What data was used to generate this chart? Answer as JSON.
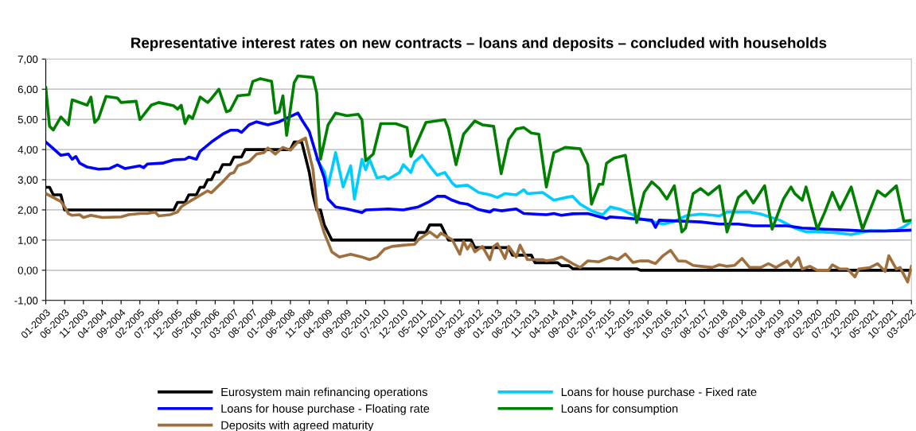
{
  "chart_data": {
    "type": "line",
    "title": "Representative interest rates on new contracts – loans and deposits – concluded with households",
    "xlim": [
      "2003-01",
      "2022-03"
    ],
    "xticks": [
      {
        "value": "2003-01",
        "label": "01-2003"
      },
      {
        "value": "2003-06",
        "label": "06-2003"
      },
      {
        "value": "2003-11",
        "label": "11-2003"
      },
      {
        "value": "2004-04",
        "label": "04-2004"
      },
      {
        "value": "2004-09",
        "label": "09-2004"
      },
      {
        "value": "2005-02",
        "label": "02-2005"
      },
      {
        "value": "2005-07",
        "label": "07-2005"
      },
      {
        "value": "2005-12",
        "label": "12-2005"
      },
      {
        "value": "2006-05",
        "label": "05-2006"
      },
      {
        "value": "2006-10",
        "label": "10-2006"
      },
      {
        "value": "2007-03",
        "label": "03-2007"
      },
      {
        "value": "2007-08",
        "label": "08-2007"
      },
      {
        "value": "2008-01",
        "label": "01-2008"
      },
      {
        "value": "2008-06",
        "label": "06-2008"
      },
      {
        "value": "2008-11",
        "label": "11-2008"
      },
      {
        "value": "2009-04",
        "label": "04-2009"
      },
      {
        "value": "2009-09",
        "label": "09-2009"
      },
      {
        "value": "2010-02",
        "label": "02-2010"
      },
      {
        "value": "2010-07",
        "label": "07-2010"
      },
      {
        "value": "2010-12",
        "label": "12-2010"
      },
      {
        "value": "2011-05",
        "label": "05-2011"
      },
      {
        "value": "2011-10",
        "label": "10-2011"
      },
      {
        "value": "2012-03",
        "label": "03-2012"
      },
      {
        "value": "2012-08",
        "label": "08-2012"
      },
      {
        "value": "2013-01",
        "label": "01-2013"
      },
      {
        "value": "2013-06",
        "label": "06-2013"
      },
      {
        "value": "2013-11",
        "label": "11-2013"
      },
      {
        "value": "2014-04",
        "label": "04-2014"
      },
      {
        "value": "2014-09",
        "label": "09-2014"
      },
      {
        "value": "2015-02",
        "label": "02-2015"
      },
      {
        "value": "2015-07",
        "label": "07-2015"
      },
      {
        "value": "2015-12",
        "label": "12-2015"
      },
      {
        "value": "2016-05",
        "label": "05-2016"
      },
      {
        "value": "2016-10",
        "label": "10-2016"
      },
      {
        "value": "2017-03",
        "label": "03-2017"
      },
      {
        "value": "2017-08",
        "label": "08-2017"
      },
      {
        "value": "2018-01",
        "label": "01-2018"
      },
      {
        "value": "2018-06",
        "label": "06-2018"
      },
      {
        "value": "2018-11",
        "label": "11-2018"
      },
      {
        "value": "2019-04",
        "label": "04-2019"
      },
      {
        "value": "2019-09",
        "label": "09-2019"
      },
      {
        "value": "2020-02",
        "label": "02-2020"
      },
      {
        "value": "2020-07",
        "label": "07-2020"
      },
      {
        "value": "2020-12",
        "label": "12-2020"
      },
      {
        "value": "2021-05",
        "label": "05-2021"
      },
      {
        "value": "2021-10",
        "label": "10-2021"
      },
      {
        "value": "2022-03",
        "label": "03-2022"
      }
    ],
    "ylim": [
      -1,
      7
    ],
    "yticks": [
      {
        "value": -1,
        "label": "-1,00"
      },
      {
        "value": 0,
        "label": "0,00"
      },
      {
        "value": 1,
        "label": "1,00"
      },
      {
        "value": 2,
        "label": "2,00"
      },
      {
        "value": 3,
        "label": "3,00"
      },
      {
        "value": 4,
        "label": "4,00"
      },
      {
        "value": 5,
        "label": "5,00"
      },
      {
        "value": 6,
        "label": "6,00"
      },
      {
        "value": 7,
        "label": "7,00"
      }
    ],
    "grid": "y",
    "legend": "bottom",
    "marker": "none",
    "line_style": "solid",
    "series": [
      {
        "name": "Eurosystem main refinancing operations",
        "color": "#000000",
        "x": [
          "2003-01",
          "2003-02",
          "2003-03",
          "2003-05",
          "2003-06",
          "2005-11",
          "2005-12",
          "2006-02",
          "2006-03",
          "2006-05",
          "2006-06",
          "2006-07",
          "2006-08",
          "2006-09",
          "2006-10",
          "2006-11",
          "2006-12",
          "2007-02",
          "2007-03",
          "2007-05",
          "2007-06",
          "2008-06",
          "2008-07",
          "2008-09",
          "2008-10",
          "2008-11",
          "2008-12",
          "2009-01",
          "2009-02",
          "2009-03",
          "2009-04",
          "2009-05",
          "2011-03",
          "2011-04",
          "2011-06",
          "2011-07",
          "2011-10",
          "2011-11",
          "2011-12",
          "2012-06",
          "2012-07",
          "2013-04",
          "2013-05",
          "2013-10",
          "2013-11",
          "2014-05",
          "2014-06",
          "2014-08",
          "2014-09",
          "2016-02",
          "2016-03",
          "2022-03"
        ],
        "values": [
          2.75,
          2.75,
          2.5,
          2.5,
          2.0,
          2.0,
          2.25,
          2.25,
          2.5,
          2.5,
          2.75,
          2.75,
          3.0,
          3.0,
          3.25,
          3.25,
          3.5,
          3.5,
          3.75,
          3.75,
          4.0,
          4.0,
          4.25,
          4.25,
          3.75,
          3.25,
          2.5,
          2.0,
          2.0,
          1.5,
          1.25,
          1.0,
          1.0,
          1.25,
          1.25,
          1.5,
          1.5,
          1.25,
          1.0,
          1.0,
          0.75,
          0.75,
          0.5,
          0.5,
          0.25,
          0.25,
          0.15,
          0.15,
          0.05,
          0.05,
          0,
          0
        ]
      },
      {
        "name": "Loans for house purchase - Fixed rate",
        "color": "#00ccff",
        "x": [
          "2009-01",
          "2009-03",
          "2009-04",
          "2009-05",
          "2009-06",
          "2009-07",
          "2009-08",
          "2009-10",
          "2009-11",
          "2010-01",
          "2010-02",
          "2010-03",
          "2010-05",
          "2010-07",
          "2010-08",
          "2010-11",
          "2010-12",
          "2011-02",
          "2011-03",
          "2011-05",
          "2011-07",
          "2011-09",
          "2011-11",
          "2012-01",
          "2012-02",
          "2012-05",
          "2012-08",
          "2012-11",
          "2013-01",
          "2013-03",
          "2013-06",
          "2013-08",
          "2013-09",
          "2014-01",
          "2014-04",
          "2014-07",
          "2014-09",
          "2014-11",
          "2015-02",
          "2015-05",
          "2015-07",
          "2015-10",
          "2016-01",
          "2016-03",
          "2016-09",
          "2016-12",
          "2017-03",
          "2017-07",
          "2017-12",
          "2018-02",
          "2018-08",
          "2018-11",
          "2019-04",
          "2019-08",
          "2019-11",
          "2020-03",
          "2020-07",
          "2020-11",
          "2021-04",
          "2021-08",
          "2021-11",
          "2022-01",
          "2022-03"
        ],
        "values": [
          3.68,
          3.28,
          2.8,
          3.33,
          3.9,
          3.33,
          2.76,
          3.46,
          2.36,
          3.68,
          3.33,
          3.68,
          3.06,
          3.11,
          3.02,
          3.24,
          3.5,
          3.24,
          3.59,
          3.81,
          3.46,
          3.15,
          3.24,
          2.89,
          2.78,
          2.82,
          2.58,
          2.5,
          2.41,
          2.54,
          2.5,
          2.67,
          2.54,
          2.58,
          2.32,
          2.41,
          2.45,
          2.19,
          1.97,
          1.84,
          2.1,
          2.01,
          1.84,
          1.71,
          1.53,
          1.62,
          1.8,
          1.86,
          1.8,
          1.93,
          1.93,
          1.86,
          1.66,
          1.4,
          1.27,
          1.27,
          1.24,
          1.18,
          1.31,
          1.3,
          1.33,
          1.44,
          1.62
        ]
      },
      {
        "name": "Loans for house purchase - Floating rate",
        "color": "#0000ff",
        "x": [
          "2003-01",
          "2003-03",
          "2003-05",
          "2003-07",
          "2003-08",
          "2003-09",
          "2003-10",
          "2003-12",
          "2004-03",
          "2004-06",
          "2004-08",
          "2004-10",
          "2005-02",
          "2005-03",
          "2005-04",
          "2005-08",
          "2005-11",
          "2006-02",
          "2006-03",
          "2006-05",
          "2006-06",
          "2006-09",
          "2006-12",
          "2007-02",
          "2007-04",
          "2007-05",
          "2007-07",
          "2007-09",
          "2007-12",
          "2008-03",
          "2008-05",
          "2008-08",
          "2008-09",
          "2008-11",
          "2009-01",
          "2009-03",
          "2009-04",
          "2009-06",
          "2009-09",
          "2010-01",
          "2010-02",
          "2010-08",
          "2010-12",
          "2011-04",
          "2011-07",
          "2011-09",
          "2011-11",
          "2012-01",
          "2012-03",
          "2012-05",
          "2012-08",
          "2012-11",
          "2012-12",
          "2013-02",
          "2013-06",
          "2013-08",
          "2014-02",
          "2014-04",
          "2014-06",
          "2014-09",
          "2015-01",
          "2015-06",
          "2015-07",
          "2016-01",
          "2016-06",
          "2016-07",
          "2016-08",
          "2017-07",
          "2017-12",
          "2018-05",
          "2018-09",
          "2019-06",
          "2019-10",
          "2020-04",
          "2020-10",
          "2021-03",
          "2021-08",
          "2021-11",
          "2022-03"
        ],
        "values": [
          4.25,
          4.03,
          3.81,
          3.85,
          3.68,
          3.77,
          3.55,
          3.42,
          3.35,
          3.37,
          3.49,
          3.37,
          3.46,
          3.4,
          3.52,
          3.55,
          3.66,
          3.68,
          3.75,
          3.68,
          3.94,
          4.25,
          4.51,
          4.64,
          4.64,
          4.57,
          4.82,
          4.92,
          4.82,
          4.92,
          5.04,
          5.21,
          4.99,
          4.6,
          3.77,
          3.06,
          2.36,
          2.1,
          2.03,
          1.91,
          2.0,
          2.03,
          2.0,
          2.1,
          2.28,
          2.45,
          2.45,
          2.32,
          2.23,
          2.19,
          2.01,
          1.93,
          2.01,
          1.97,
          2.03,
          1.88,
          1.84,
          1.88,
          1.82,
          1.87,
          1.88,
          1.71,
          1.77,
          1.71,
          1.66,
          1.42,
          1.66,
          1.6,
          1.53,
          1.53,
          1.47,
          1.47,
          1.4,
          1.36,
          1.33,
          1.3,
          1.3,
          1.31,
          1.33
        ]
      },
      {
        "name": "Loans for consumption",
        "color": "#008000",
        "x": [
          "2003-01",
          "2003-02",
          "2003-03",
          "2003-05",
          "2003-07",
          "2003-08",
          "2003-12",
          "2004-01",
          "2004-02",
          "2004-03",
          "2004-05",
          "2004-08",
          "2004-09",
          "2005-01",
          "2005-02",
          "2005-05",
          "2005-07",
          "2005-11",
          "2005-12",
          "2006-01",
          "2006-02",
          "2006-03",
          "2006-04",
          "2006-06",
          "2006-08",
          "2006-09",
          "2006-11",
          "2007-01",
          "2007-02",
          "2007-04",
          "2007-07",
          "2007-08",
          "2007-10",
          "2008-01",
          "2008-02",
          "2008-03",
          "2008-04",
          "2008-05",
          "2008-07",
          "2008-08",
          "2008-12",
          "2009-01",
          "2009-02",
          "2009-04",
          "2009-06",
          "2009-09",
          "2009-12",
          "2010-01",
          "2010-02",
          "2010-04",
          "2010-06",
          "2010-10",
          "2011-01",
          "2011-02",
          "2011-06",
          "2011-11",
          "2011-12",
          "2012-02",
          "2012-04",
          "2012-07",
          "2012-09",
          "2012-12",
          "2013-02",
          "2013-04",
          "2013-06",
          "2013-08",
          "2013-10",
          "2013-12",
          "2014-02",
          "2014-04",
          "2014-07",
          "2014-11",
          "2015-01",
          "2015-02",
          "2015-04",
          "2015-05",
          "2015-06",
          "2015-08",
          "2015-11",
          "2016-02",
          "2016-04",
          "2016-06",
          "2016-08",
          "2016-10",
          "2016-12",
          "2017-02",
          "2017-03",
          "2017-05",
          "2017-07",
          "2017-09",
          "2017-12",
          "2018-02",
          "2018-05",
          "2018-07",
          "2018-09",
          "2018-12",
          "2019-02",
          "2019-05",
          "2019-07",
          "2019-08",
          "2019-10",
          "2019-11",
          "2020-02",
          "2020-04",
          "2020-06",
          "2020-08",
          "2020-11",
          "2021-02",
          "2021-06",
          "2021-08",
          "2021-11",
          "2022-01",
          "2022-03"
        ],
        "values": [
          6.05,
          4.77,
          4.65,
          5.08,
          4.82,
          5.65,
          5.47,
          5.74,
          4.9,
          5.03,
          5.76,
          5.71,
          5.56,
          5.6,
          4.99,
          5.47,
          5.56,
          5.45,
          5.34,
          5.47,
          4.86,
          5.12,
          5.03,
          5.74,
          5.56,
          5.69,
          6.0,
          5.25,
          5.3,
          5.78,
          5.82,
          6.26,
          6.35,
          6.26,
          5.21,
          5.25,
          5.78,
          4.47,
          6.22,
          6.44,
          6.39,
          5.87,
          3.68,
          4.82,
          5.21,
          5.12,
          5.17,
          4.99,
          3.63,
          3.85,
          4.86,
          4.86,
          4.73,
          3.77,
          4.9,
          4.99,
          4.68,
          3.5,
          4.51,
          4.95,
          4.82,
          4.77,
          3.2,
          4.33,
          4.68,
          4.73,
          4.55,
          4.51,
          2.76,
          3.9,
          4.07,
          4.03,
          3.5,
          2.19,
          2.85,
          2.85,
          3.55,
          3.72,
          3.81,
          1.58,
          2.58,
          2.93,
          2.71,
          2.36,
          2.8,
          1.27,
          1.4,
          2.54,
          2.71,
          2.5,
          2.8,
          1.27,
          2.41,
          2.63,
          2.23,
          2.8,
          1.36,
          2.36,
          2.76,
          2.54,
          2.32,
          2.76,
          1.36,
          1.93,
          2.58,
          2.01,
          2.76,
          1.36,
          2.63,
          2.45,
          2.8,
          1.62,
          1.66
        ]
      },
      {
        "name": "Deposits with agreed maturity",
        "color": "#a0703c",
        "x": [
          "2003-01",
          "2003-03",
          "2003-05",
          "2003-06",
          "2003-07",
          "2003-08",
          "2003-10",
          "2003-11",
          "2004-01",
          "2004-04",
          "2004-09",
          "2004-11",
          "2005-02",
          "2005-04",
          "2005-06",
          "2005-07",
          "2005-10",
          "2005-12",
          "2006-01",
          "2006-02",
          "2006-05",
          "2006-08",
          "2006-09",
          "2006-12",
          "2007-02",
          "2007-03",
          "2007-04",
          "2007-07",
          "2007-09",
          "2007-11",
          "2007-12",
          "2008-02",
          "2008-04",
          "2008-06",
          "2008-08",
          "2008-10",
          "2008-12",
          "2009-01",
          "2009-03",
          "2009-05",
          "2009-07",
          "2009-10",
          "2010-01",
          "2010-03",
          "2010-05",
          "2010-07",
          "2010-09",
          "2010-12",
          "2011-03",
          "2011-04",
          "2011-07",
          "2011-09",
          "2011-10",
          "2012-01",
          "2012-03",
          "2012-04",
          "2012-05",
          "2012-06",
          "2012-07",
          "2012-09",
          "2012-11",
          "2012-12",
          "2013-01",
          "2013-03",
          "2013-04",
          "2013-06",
          "2013-07",
          "2013-09",
          "2014-01",
          "2014-02",
          "2014-04",
          "2014-06",
          "2014-09",
          "2014-11",
          "2015-01",
          "2015-04",
          "2015-07",
          "2015-09",
          "2015-11",
          "2016-01",
          "2016-03",
          "2016-05",
          "2016-07",
          "2016-09",
          "2016-11",
          "2017-01",
          "2017-03",
          "2017-05",
          "2017-07",
          "2017-10",
          "2017-12",
          "2018-02",
          "2018-04",
          "2018-06",
          "2018-08",
          "2018-11",
          "2019-01",
          "2019-03",
          "2019-06",
          "2019-07",
          "2019-09",
          "2019-10",
          "2019-12",
          "2020-02",
          "2020-05",
          "2020-06",
          "2020-08",
          "2020-10",
          "2020-12",
          "2021-01",
          "2021-04",
          "2021-06",
          "2021-08",
          "2021-09",
          "2021-11",
          "2021-12",
          "2022-02",
          "2022-03"
        ],
        "values": [
          2.54,
          2.41,
          2.28,
          2.1,
          1.88,
          1.82,
          1.84,
          1.75,
          1.82,
          1.75,
          1.77,
          1.84,
          1.88,
          1.88,
          1.93,
          1.8,
          1.84,
          1.93,
          2.1,
          2.19,
          2.41,
          2.63,
          2.57,
          2.93,
          3.2,
          3.24,
          3.46,
          3.6,
          3.85,
          3.9,
          4.05,
          3.85,
          4.07,
          3.98,
          4.25,
          4.38,
          3.33,
          2.06,
          1.23,
          0.61,
          0.44,
          0.53,
          0.44,
          0.35,
          0.44,
          0.7,
          0.79,
          0.83,
          0.86,
          1.01,
          1.27,
          1.09,
          1.23,
          1.01,
          0.53,
          0.96,
          0.7,
          0.88,
          0.61,
          0.79,
          0.35,
          0.79,
          0.88,
          0.39,
          0.79,
          0.44,
          0.83,
          0.35,
          0.35,
          0.31,
          0.35,
          0.44,
          0.22,
          0.09,
          0.31,
          0.28,
          0.44,
          0.35,
          0.54,
          0.26,
          0.31,
          0.31,
          0.22,
          0.48,
          0.66,
          0.31,
          0.3,
          0.16,
          0.13,
          0.09,
          0.18,
          0.13,
          0.16,
          0.39,
          0.09,
          0.09,
          0.22,
          0.09,
          0.31,
          0.13,
          0.42,
          0.04,
          0.13,
          0.0,
          0.0,
          0.18,
          0.04,
          0.04,
          -0.22,
          0.04,
          0.09,
          0.22,
          -0.04,
          0.48,
          0.04,
          0.09,
          -0.39,
          0.13
        ]
      }
    ]
  }
}
